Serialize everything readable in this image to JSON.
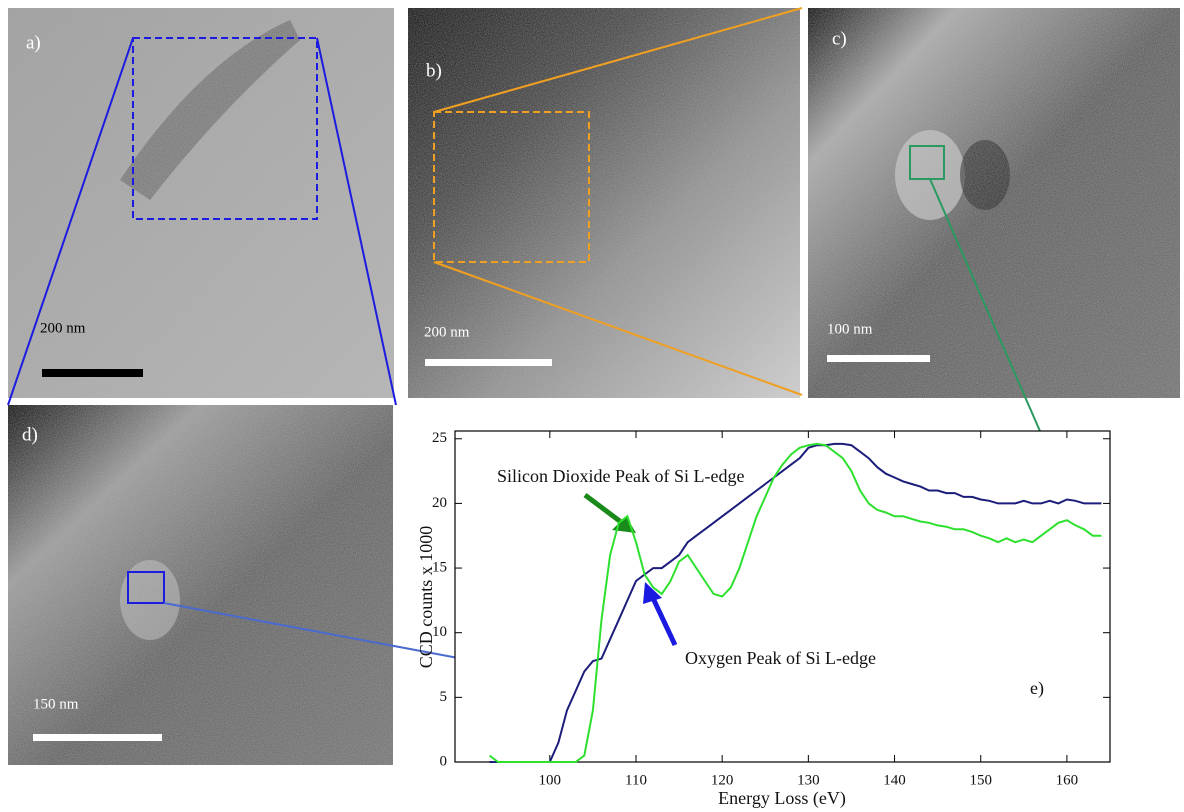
{
  "panels": [
    {
      "label": "a)",
      "scale_bar": "200 nm"
    },
    {
      "label": "b)",
      "scale_bar": "200 nm"
    },
    {
      "label": "c)",
      "scale_bar": "100 nm"
    },
    {
      "label": "d)",
      "scale_bar": "150 nm"
    }
  ],
  "chart_data": {
    "type": "line",
    "label": "e)",
    "x_label": "Energy Loss (eV)",
    "y_label": "CCD counts  x 1000",
    "annotations": [
      "Silicon Dioxide Peak of Si L-edge",
      "Oxygen Peak of Si L-edge"
    ],
    "x": [
      93,
      94,
      95,
      96,
      97,
      98,
      99,
      100,
      101,
      102,
      103,
      104,
      105,
      106,
      107,
      108,
      109,
      110,
      111,
      112,
      113,
      114,
      115,
      116,
      117,
      118,
      119,
      120,
      121,
      122,
      123,
      124,
      125,
      126,
      127,
      128,
      129,
      130,
      131,
      132,
      133,
      134,
      135,
      136,
      137,
      138,
      139,
      140,
      141,
      142,
      143,
      144,
      145,
      146,
      147,
      148,
      149,
      150,
      151,
      152,
      153,
      154,
      155,
      156,
      157,
      158,
      159,
      160,
      161,
      162,
      163,
      164
    ],
    "series": [
      {
        "color": "#1c1c7a",
        "values": [
          0,
          0,
          0,
          0,
          0,
          0,
          0,
          0,
          1.5,
          4,
          5.5,
          7,
          7.8,
          8,
          9.5,
          11,
          12.5,
          14,
          14.5,
          15,
          15,
          15.5,
          16,
          17,
          17.5,
          18,
          18.5,
          19,
          19.5,
          20,
          20.5,
          21,
          21.5,
          22,
          22.5,
          23,
          23.5,
          24.3,
          24.5,
          24.5,
          24.6,
          24.6,
          24.5,
          24,
          23.5,
          22.8,
          22.3,
          22,
          21.7,
          21.5,
          21.3,
          21,
          21,
          20.8,
          20.8,
          20.5,
          20.5,
          20.3,
          20.2,
          20,
          20,
          20,
          20.2,
          20,
          20,
          20.2,
          20,
          20.3,
          20.2,
          20,
          20,
          20
        ]
      },
      {
        "color": "#2ee02e",
        "values": [
          0.5,
          0,
          0,
          0,
          0,
          0,
          0,
          0,
          0,
          0,
          0,
          0.5,
          4,
          11,
          16,
          18.5,
          19,
          17,
          14.5,
          13.5,
          13,
          14,
          15.5,
          16,
          15,
          14,
          13,
          12.8,
          13.5,
          15,
          17,
          19,
          20.5,
          22,
          23,
          23.8,
          24.3,
          24.5,
          24.6,
          24.5,
          24,
          23.5,
          22.5,
          21,
          20,
          19.5,
          19.3,
          19,
          19,
          18.8,
          18.6,
          18.5,
          18.3,
          18.2,
          18,
          18,
          17.8,
          17.5,
          17.3,
          17,
          17.3,
          17,
          17.2,
          17,
          17.5,
          18,
          18.5,
          18.7,
          18.3,
          18,
          17.5,
          17.5
        ]
      }
    ],
    "xlim": [
      89,
      165
    ],
    "ylim": [
      0,
      25.6
    ],
    "xticks": [
      100,
      110,
      120,
      130,
      140,
      150,
      160
    ],
    "yticks": [
      0,
      5,
      10,
      15,
      20,
      25
    ]
  }
}
